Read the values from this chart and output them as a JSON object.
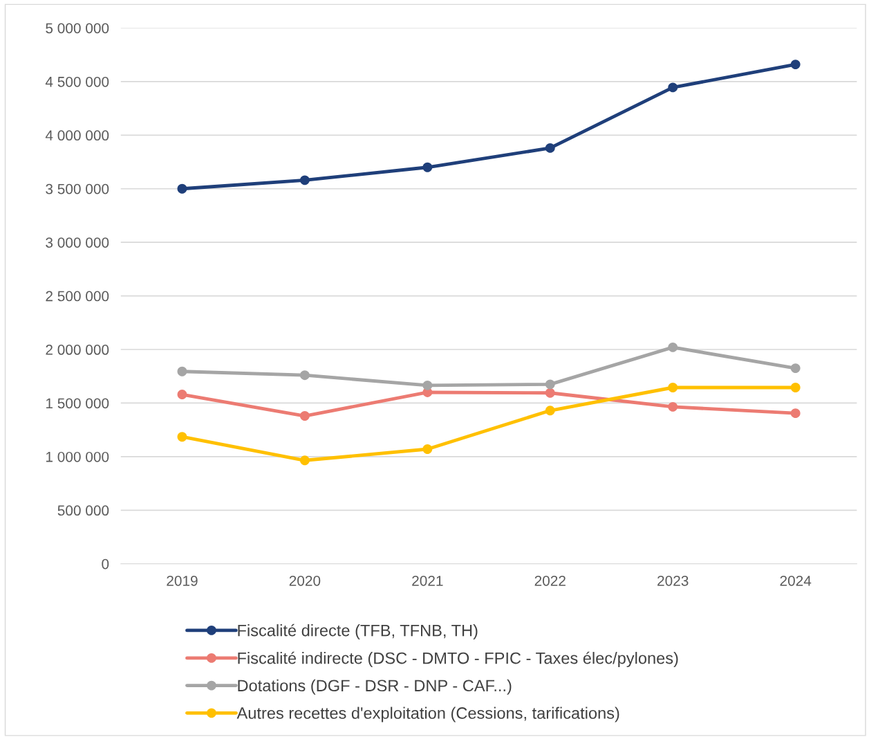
{
  "chart_data": {
    "type": "line",
    "categories": [
      "2019",
      "2020",
      "2021",
      "2022",
      "2023",
      "2024"
    ],
    "series": [
      {
        "name": "Fiscalité directe (TFB, TFNB, TH)",
        "color": "#1f3f7a",
        "values": [
          3500000,
          3580000,
          3700000,
          3880000,
          4445000,
          4660000
        ]
      },
      {
        "name": "Fiscalité indirecte (DSC - DMTO - FPIC - Taxes élec/pylones)",
        "color": "#ec7b72",
        "values": [
          1580000,
          1380000,
          1600000,
          1595000,
          1465000,
          1405000
        ]
      },
      {
        "name": "Dotations (DGF - DSR - DNP - CAF...)",
        "color": "#a5a5a5",
        "values": [
          1795000,
          1760000,
          1665000,
          1675000,
          2020000,
          1825000
        ]
      },
      {
        "name": "Autres recettes d'exploitation (Cessions, tarifications)",
        "color": "#ffc000",
        "values": [
          1185000,
          965000,
          1070000,
          1430000,
          1645000,
          1645000
        ]
      }
    ],
    "ylim": [
      0,
      5000000
    ],
    "yticks": [
      0,
      {
        "value": 500000,
        "label": "500 000"
      },
      {
        "value": 1000000,
        "label": "1 000 000"
      },
      {
        "value": 1500000,
        "label": "1 500 000"
      },
      {
        "value": 2000000,
        "label": "2 000 000"
      },
      {
        "value": 2500000,
        "label": "2 500 000"
      },
      {
        "value": 3000000,
        "label": "3 000 000"
      },
      {
        "value": 3500000,
        "label": "3 500 000"
      },
      {
        "value": 4000000,
        "label": "4 000 000"
      },
      {
        "value": 4500000,
        "label": "4 500 000"
      },
      {
        "value": 5000000,
        "label": "5 000 000"
      }
    ],
    "grid": "y",
    "legend": "bottom",
    "marker": "circle",
    "line_style": "solid"
  }
}
